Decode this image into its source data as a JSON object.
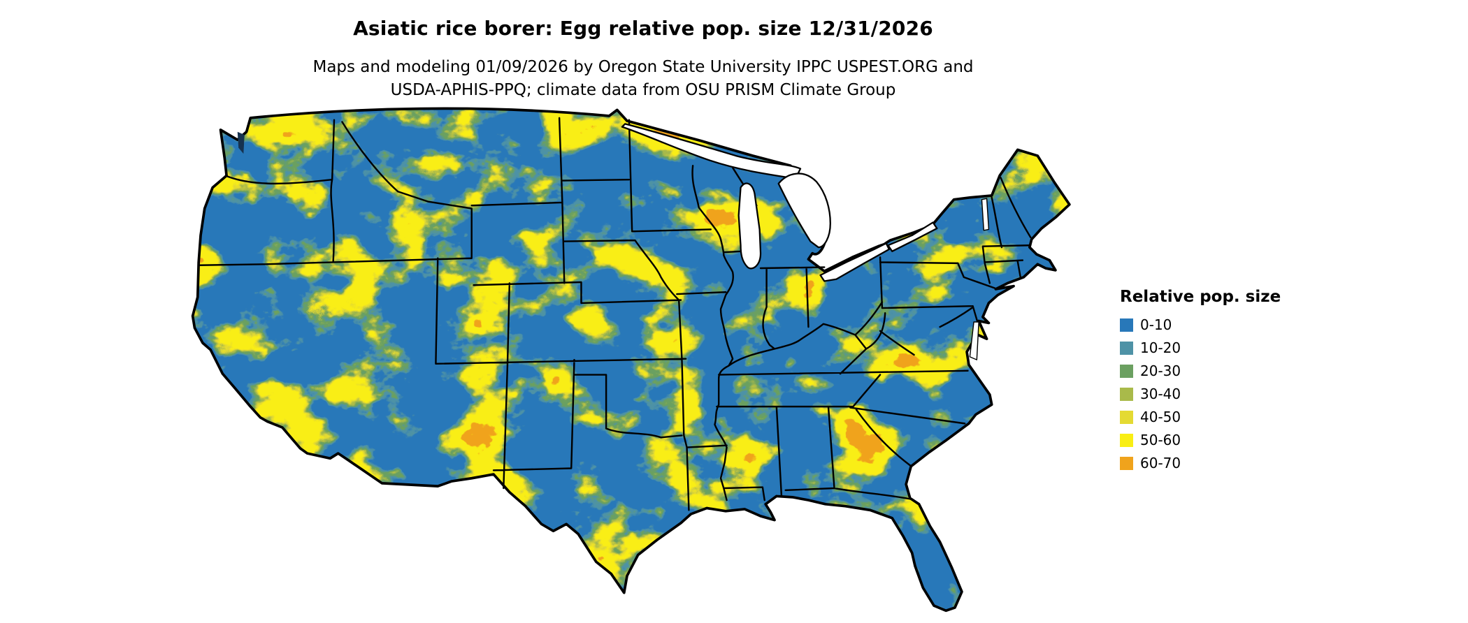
{
  "title": "Asiatic rice borer: Egg relative pop. size 12/31/2026",
  "subtitle_line1": "Maps and modeling 01/09/2026 by Oregon State University IPPC USPEST.ORG and",
  "subtitle_line2": "USDA-APHIS-PPQ; climate data from OSU PRISM Climate Group",
  "map": {
    "region": "conterminous-united-states",
    "boundary_color": "#000000",
    "water_color": "#ffffff",
    "puget_color": "#16324f"
  },
  "legend": {
    "title": "Relative pop. size",
    "items": [
      {
        "label": "0-10",
        "color": "#2878b9"
      },
      {
        "label": "10-20",
        "color": "#4e92a6"
      },
      {
        "label": "20-30",
        "color": "#6ba061"
      },
      {
        "label": "30-40",
        "color": "#a9ba4a"
      },
      {
        "label": "40-50",
        "color": "#e4da33"
      },
      {
        "label": "50-60",
        "color": "#f9ee14"
      },
      {
        "label": "60-70",
        "color": "#f0a31c"
      }
    ]
  }
}
